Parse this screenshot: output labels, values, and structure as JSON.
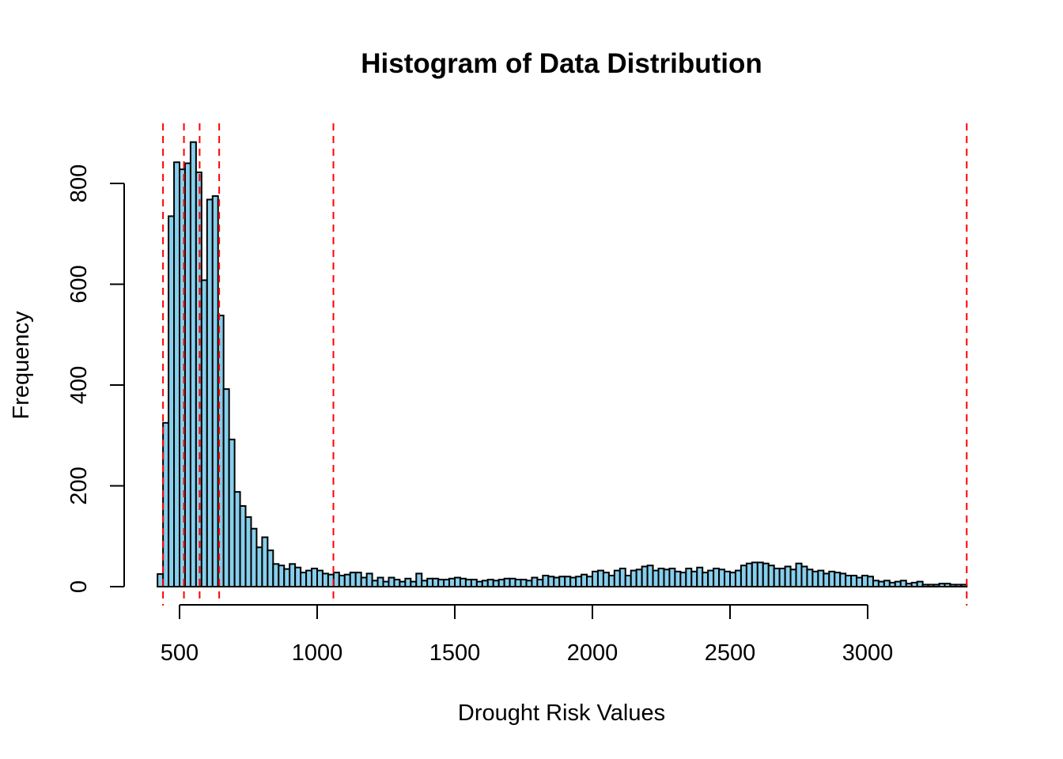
{
  "chart_data": {
    "type": "bar",
    "title": "Histogram of Data Distribution",
    "xlabel": "Drought Risk Values",
    "ylabel": "Frequency",
    "bin_width": 20,
    "bin_start": 420,
    "xlim": [
      420,
      3360
    ],
    "ylim": [
      0,
      880
    ],
    "x_ticks": [
      500,
      1000,
      1500,
      2000,
      2500,
      3000
    ],
    "y_ticks": [
      0,
      200,
      400,
      600,
      800
    ],
    "counts": [
      25,
      325,
      735,
      842,
      828,
      840,
      882,
      822,
      608,
      768,
      775,
      538,
      392,
      292,
      188,
      160,
      138,
      115,
      78,
      98,
      72,
      45,
      42,
      35,
      45,
      38,
      28,
      32,
      36,
      32,
      26,
      24,
      28,
      22,
      24,
      28,
      28,
      18,
      26,
      12,
      18,
      10,
      18,
      14,
      10,
      16,
      10,
      26,
      12,
      16,
      16,
      14,
      14,
      16,
      18,
      16,
      14,
      14,
      10,
      12,
      14,
      12,
      14,
      16,
      16,
      14,
      14,
      12,
      18,
      14,
      22,
      20,
      18,
      20,
      20,
      18,
      20,
      24,
      20,
      30,
      32,
      28,
      22,
      32,
      36,
      22,
      32,
      34,
      40,
      42,
      32,
      36,
      34,
      36,
      30,
      28,
      36,
      30,
      38,
      28,
      32,
      36,
      34,
      30,
      28,
      32,
      42,
      46,
      48,
      48,
      46,
      42,
      36,
      36,
      40,
      34,
      46,
      40,
      34,
      30,
      32,
      26,
      30,
      28,
      26,
      22,
      22,
      18,
      22,
      20,
      12,
      10,
      12,
      8,
      10,
      12,
      6,
      8,
      10,
      4,
      4,
      4,
      6,
      6,
      4,
      4,
      4
    ],
    "vlines": [
      440,
      516,
      573,
      644,
      1059,
      3360
    ],
    "colors": {
      "bar_fill": "#87CEEB",
      "bar_border": "#000000",
      "vline": "#FF0000"
    }
  }
}
